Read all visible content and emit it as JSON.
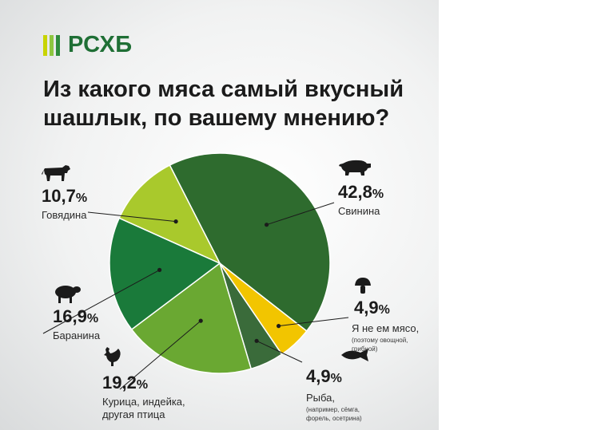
{
  "logo": {
    "text": "РСХБ",
    "bar_colors": [
      "#c8d400",
      "#8dc63f",
      "#2e8b3c"
    ]
  },
  "title_lines": [
    "Из какого мяса самый вкусный",
    "шашлык, по вашему мнению?"
  ],
  "chart_data": {
    "type": "pie",
    "title": "Из какого мяса самый вкусный шашлык, по вашему мнению?",
    "slices": [
      {
        "label": "Свинина",
        "value": 42.8,
        "value_text": "42,8",
        "note": "",
        "color": "#2e6b2e",
        "icon": "pig-icon"
      },
      {
        "label": "Я не ем мясо,",
        "value": 4.9,
        "value_text": "4,9",
        "note_lines": [
          "(поэтому овощной,",
          "грибной)"
        ],
        "color": "#f2c500",
        "icon": "mushroom-icon"
      },
      {
        "label": "Рыба,",
        "value": 4.9,
        "value_text": "4,9",
        "note_lines": [
          "(например, сёмга,",
          "форель, осетрина)"
        ],
        "color": "#3a6b3a",
        "icon": "fish-icon"
      },
      {
        "label": "Курица, индейка, другая птица",
        "label_lines": [
          "Курица, индейка,",
          "другая птица"
        ],
        "value": 19.2,
        "value_text": "19,2",
        "color": "#6aa832",
        "icon": "rooster-icon"
      },
      {
        "label": "Баранина",
        "value": 16.9,
        "value_text": "16,9",
        "color": "#1a7a3a",
        "icon": "sheep-icon"
      },
      {
        "label": "Говядина",
        "value": 10.7,
        "value_text": "10,7",
        "color": "#a9c92c",
        "icon": "cow-icon"
      }
    ],
    "percent_sign": "%"
  }
}
